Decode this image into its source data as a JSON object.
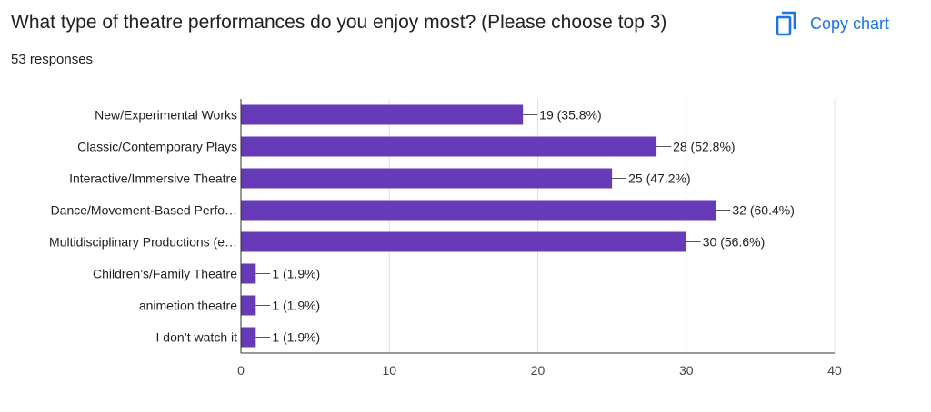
{
  "header": {
    "question": "What type of theatre performances do you enjoy most? (Please choose top 3)",
    "responses": "53 responses",
    "copy_label": "Copy chart",
    "copy_icon": "copy-icon"
  },
  "colors": {
    "bar": "#673ab7",
    "accent": "#1a73e8",
    "grid": "#e0e0e0",
    "axis": "#333333"
  },
  "chart_data": {
    "type": "bar",
    "orientation": "horizontal",
    "categories": [
      "New/Experimental Works",
      "Classic/Contemporary Plays",
      "Interactive/Immersive Theatre",
      "Dance/Movement-Based Perfo…",
      "Multidisciplinary Productions (e…",
      "Children’s/Family Theatre",
      "animetion theatre",
      "I don’t watch it"
    ],
    "values": [
      19,
      28,
      25,
      32,
      30,
      1,
      1,
      1
    ],
    "data_labels": [
      "19 (35.8%)",
      "28 (52.8%)",
      "25 (47.2%)",
      "32 (60.4%)",
      "30 (56.6%)",
      "1 (1.9%)",
      "1 (1.9%)",
      "1 (1.9%)"
    ],
    "xlim": [
      0,
      40
    ],
    "xticks": [
      0,
      10,
      20,
      30,
      40
    ],
    "grid": true,
    "legend": "none"
  }
}
